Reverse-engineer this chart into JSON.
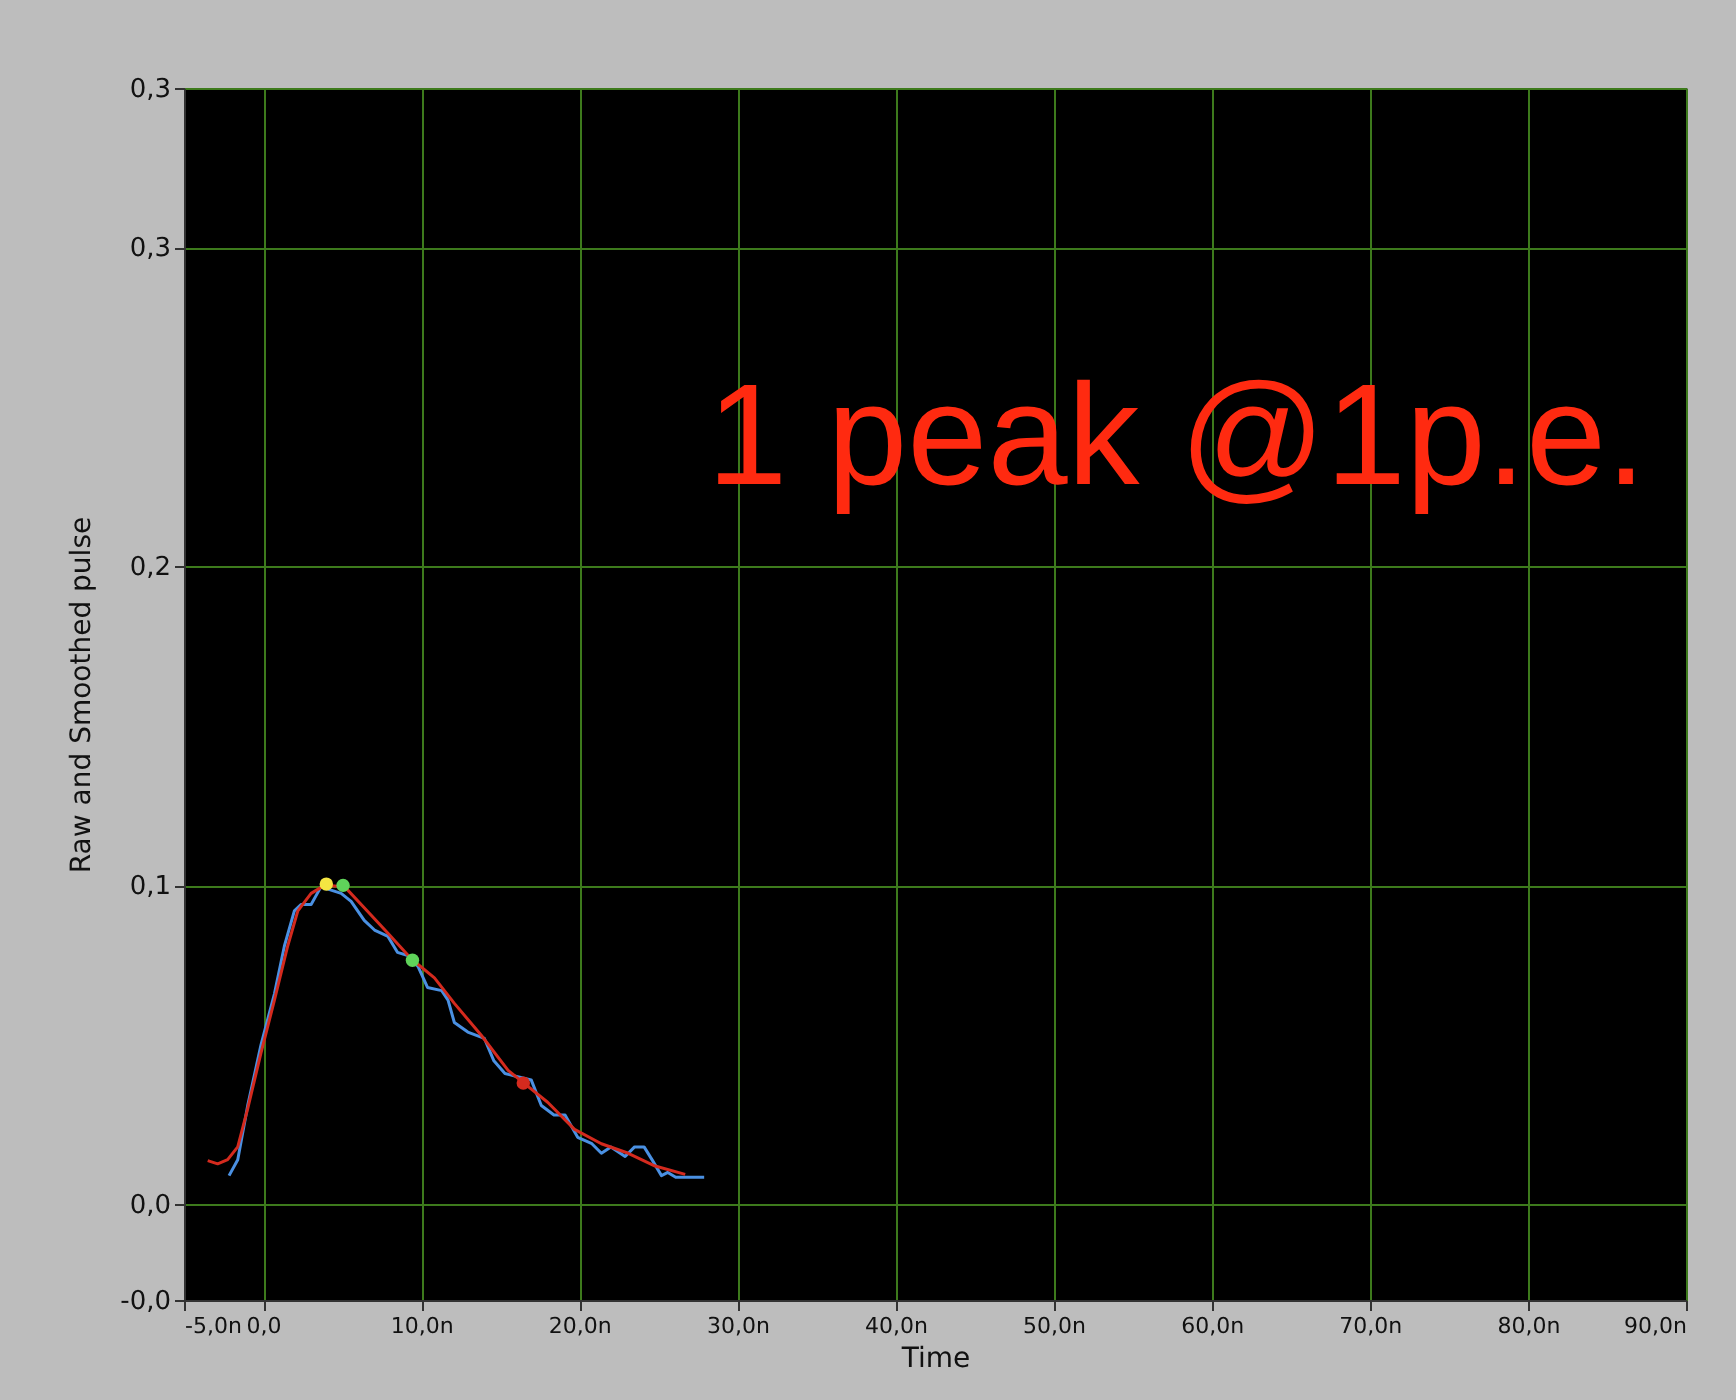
{
  "chart_data": {
    "type": "line",
    "xlabel": "Time",
    "ylabel": "Raw and Smoothed pulse",
    "xlim": [
      -5,
      90
    ],
    "ylim": [
      -0.03,
      0.35
    ],
    "xticks": [
      {
        "value": -5,
        "label": "-5,0n"
      },
      {
        "value": 0,
        "label": "0,0"
      },
      {
        "value": 10,
        "label": "10,0n"
      },
      {
        "value": 20,
        "label": "20,0n"
      },
      {
        "value": 30,
        "label": "30,0n"
      },
      {
        "value": 40,
        "label": "40,0n"
      },
      {
        "value": 50,
        "label": "50,0n"
      },
      {
        "value": 60,
        "label": "60,0n"
      },
      {
        "value": 70,
        "label": "70,0n"
      },
      {
        "value": 80,
        "label": "80,0n"
      },
      {
        "value": 90,
        "label": "90,0n"
      }
    ],
    "yticks": [
      {
        "value": -0.03,
        "label": "-0,0"
      },
      {
        "value": 0,
        "label": "0,0"
      },
      {
        "value": 0.1,
        "label": "0,1"
      },
      {
        "value": 0.2,
        "label": "0,2"
      },
      {
        "value": 0.3,
        "label": "0,3"
      },
      {
        "value": 0.35,
        "label": "0,3"
      }
    ],
    "grid": true,
    "line_style": "solid",
    "annotations": [
      "1 peak @1p.e."
    ],
    "series": [
      {
        "color": "#4a90e2",
        "x": [
          -2.15,
          -1.6,
          -0.97,
          -0.13,
          0.72,
          1.35,
          1.98,
          2.4,
          3.04,
          3.67,
          4.3,
          4.94,
          5.57,
          6.4,
          7.05,
          7.9,
          8.5,
          9.16,
          9.8,
          10.4,
          11.3,
          11.7,
          12.1,
          12.95,
          14.0,
          14.6,
          15.3,
          16.1,
          16.96,
          17.6,
          18.4,
          19.1,
          19.9,
          20.8,
          21.4,
          22.0,
          22.9,
          23.5,
          24.1,
          24.6,
          25.2,
          25.6,
          26.1,
          27.9
        ],
        "values": [
          0.009,
          0.014,
          0.031,
          0.05,
          0.066,
          0.081,
          0.092,
          0.094,
          0.094,
          0.0996,
          0.0985,
          0.0975,
          0.095,
          0.089,
          0.086,
          0.084,
          0.079,
          0.078,
          0.0746,
          0.068,
          0.067,
          0.064,
          0.057,
          0.054,
          0.052,
          0.045,
          0.041,
          0.04,
          0.039,
          0.031,
          0.028,
          0.028,
          0.021,
          0.019,
          0.016,
          0.018,
          0.015,
          0.018,
          0.018,
          0.014,
          0.009,
          0.01,
          0.0085,
          0.0085
        ]
      },
      {
        "color": "#d42a1e",
        "x": [
          -3.5,
          -2.87,
          -2.24,
          -1.6,
          -0.97,
          -0.13,
          0.72,
          1.56,
          2.2,
          3.04,
          3.88,
          5.15,
          6.4,
          7.9,
          9.37,
          10.84,
          12.1,
          13.8,
          15.5,
          16.5,
          18.0,
          19.7,
          21.4,
          23.1,
          24.8,
          26.7
        ],
        "values": [
          0.0137,
          0.0127,
          0.014,
          0.018,
          0.03,
          0.0475,
          0.064,
          0.081,
          0.092,
          0.0975,
          0.1,
          0.0996,
          0.093,
          0.085,
          0.077,
          0.071,
          0.063,
          0.053,
          0.042,
          0.038,
          0.032,
          0.0235,
          0.019,
          0.016,
          0.012,
          0.0094
        ]
      },
      {
        "type": "scatter",
        "marker": "circle",
        "x": [
          4.0,
          5.06,
          9.45,
          16.46
        ],
        "values": [
          0.1004,
          0.1,
          0.0765,
          0.038
        ],
        "colors": [
          "#f5e642",
          "#5fd35a",
          "#5fd35a",
          "#d42a1e"
        ]
      }
    ]
  }
}
